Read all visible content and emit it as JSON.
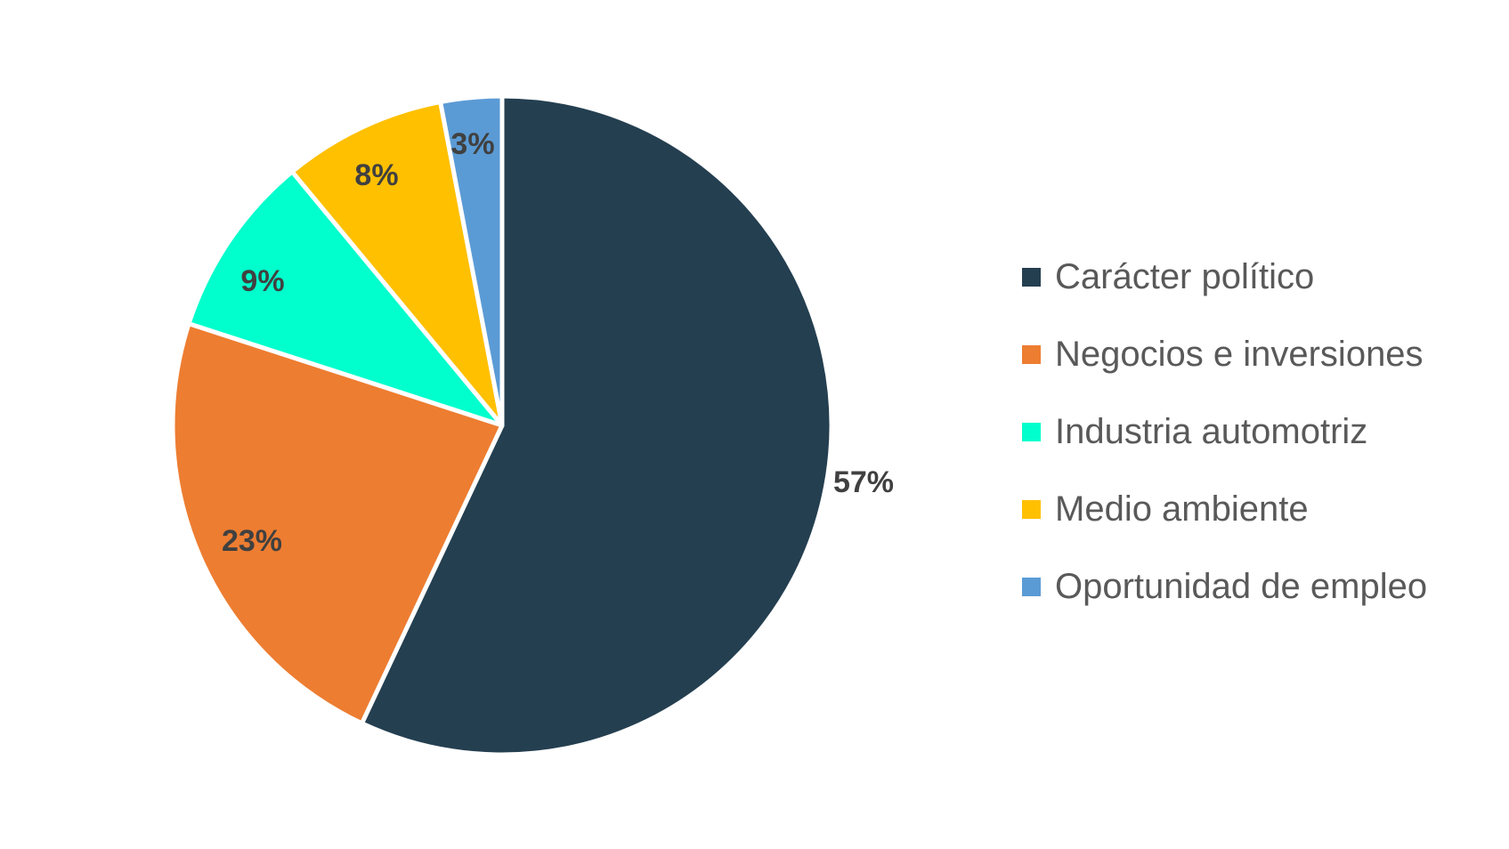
{
  "chart_data": {
    "type": "pie",
    "title": "",
    "legend_position": "right",
    "unit": "%",
    "slices": [
      {
        "label": "Carácter político",
        "value": 57,
        "value_label": "57%",
        "color": "#243f50"
      },
      {
        "label": "Negocios e inversiones",
        "value": 23,
        "value_label": "23%",
        "color": "#ed7d31"
      },
      {
        "label": "Industria automotriz",
        "value": 9,
        "value_label": "9%",
        "color": "#00ffcc"
      },
      {
        "label": "Medio ambiente",
        "value": 8,
        "value_label": "8%",
        "color": "#ffc000"
      },
      {
        "label": "Oportunidad de empleo",
        "value": 3,
        "value_label": "3%",
        "color": "#5b9bd5"
      }
    ]
  }
}
